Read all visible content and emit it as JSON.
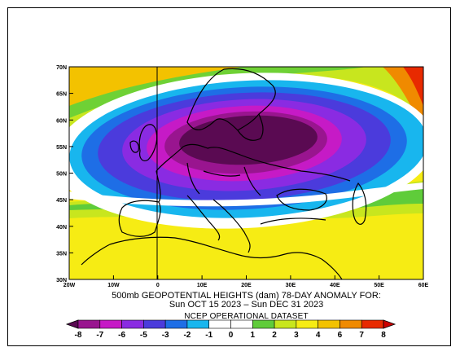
{
  "map": {
    "title_line1": "500mb GEOPOTENTIAL HEIGHTS (dam)   78-DAY ANOMALY FOR:",
    "title_line2": "Sun OCT 15 2023 – Sun DEC 31 2023",
    "dataset": "NCEP OPERATIONAL DATASET",
    "lat_labels": [
      "70N",
      "65N",
      "60N",
      "55N",
      "50N",
      "45N",
      "40N",
      "35N",
      "30N"
    ],
    "lon_labels": [
      "20W",
      "10W",
      "0",
      "10E",
      "20E",
      "30E",
      "40E",
      "50E",
      "60E"
    ]
  },
  "colorbar": {
    "labels": [
      "-8",
      "-7",
      "-6",
      "-5",
      "-3",
      "-2",
      "-1",
      "0",
      "1",
      "2",
      "3",
      "4",
      "6",
      "7",
      "8"
    ],
    "colors": [
      "#5a0a52",
      "#99158f",
      "#c61ac6",
      "#8a2be2",
      "#4b3bdc",
      "#1e6ee6",
      "#18b6ee",
      "#ffffff",
      "#ffffff",
      "#5fcc3a",
      "#c8e61e",
      "#f6ec14",
      "#f3c200",
      "#f08a00",
      "#e82a00",
      "#cc0000"
    ]
  }
}
